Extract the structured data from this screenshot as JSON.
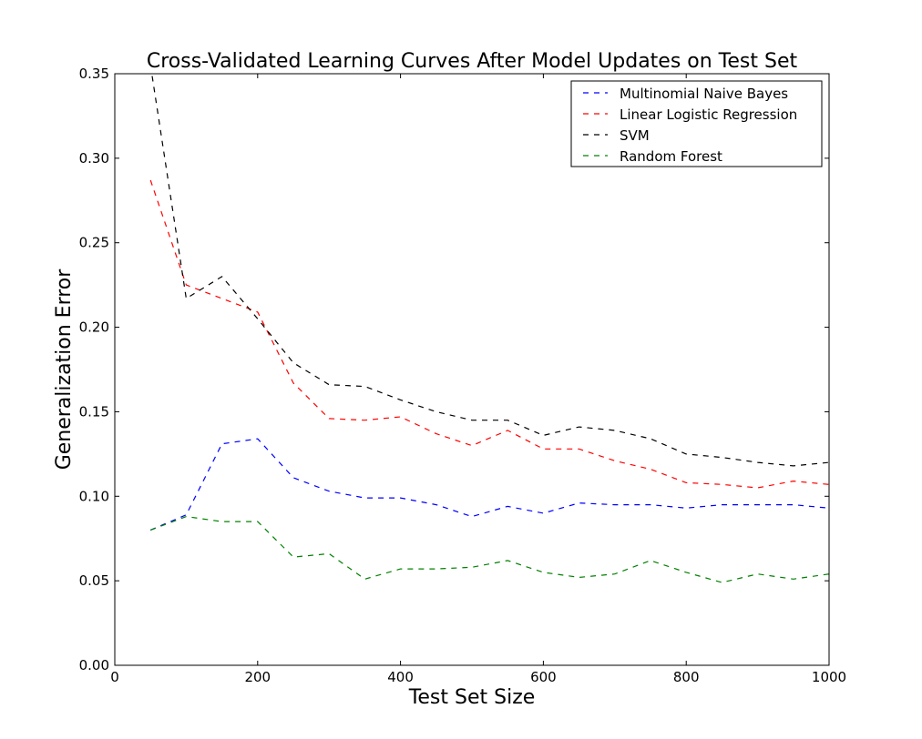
{
  "chart_data": {
    "type": "line",
    "title": "Cross-Validated Learning Curves After Model Updates on Test Set",
    "xlabel": "Test Set Size",
    "ylabel": "Generalization Error",
    "xlim": [
      0,
      1000
    ],
    "ylim": [
      0,
      0.35
    ],
    "xticks": [
      0,
      200,
      400,
      600,
      800,
      1000
    ],
    "xtick_labels": [
      "0",
      "200",
      "400",
      "600",
      "800",
      "1000"
    ],
    "yticks": [
      0,
      0.05,
      0.1,
      0.15,
      0.2,
      0.25,
      0.3,
      0.35
    ],
    "ytick_labels": [
      "0.00",
      "0.05",
      "0.10",
      "0.15",
      "0.20",
      "0.25",
      "0.30",
      "0.35"
    ],
    "grid": false,
    "legend_position": "top-right",
    "x": [
      50,
      100,
      150,
      200,
      250,
      300,
      350,
      400,
      450,
      500,
      550,
      600,
      650,
      700,
      750,
      800,
      850,
      900,
      950,
      1000
    ],
    "series": [
      {
        "name": "Multinomial Naive Bayes",
        "color": "#0000ff",
        "values": [
          0.08,
          0.089,
          0.131,
          0.134,
          0.111,
          0.103,
          0.099,
          0.099,
          0.095,
          0.088,
          0.094,
          0.09,
          0.096,
          0.095,
          0.095,
          0.093,
          0.095,
          0.095,
          0.095,
          0.093
        ]
      },
      {
        "name": "Linear Logistic Regression",
        "color": "#ff0000",
        "values": [
          0.287,
          0.225,
          0.217,
          0.209,
          0.167,
          0.146,
          0.145,
          0.147,
          0.137,
          0.13,
          0.139,
          0.128,
          0.128,
          0.121,
          0.116,
          0.108,
          0.107,
          0.105,
          0.109,
          0.107
        ]
      },
      {
        "name": "SVM",
        "color": "#000000",
        "values": [
          0.355,
          0.217,
          0.23,
          0.205,
          0.179,
          0.166,
          0.165,
          0.157,
          0.15,
          0.145,
          0.145,
          0.136,
          0.141,
          0.139,
          0.134,
          0.125,
          0.123,
          0.12,
          0.118,
          0.12
        ]
      },
      {
        "name": "Random Forest",
        "color": "#008000",
        "values": [
          0.08,
          0.088,
          0.085,
          0.085,
          0.064,
          0.066,
          0.051,
          0.057,
          0.057,
          0.058,
          0.062,
          0.055,
          0.052,
          0.054,
          0.062,
          0.055,
          0.049,
          0.054,
          0.051,
          0.054
        ]
      }
    ]
  }
}
